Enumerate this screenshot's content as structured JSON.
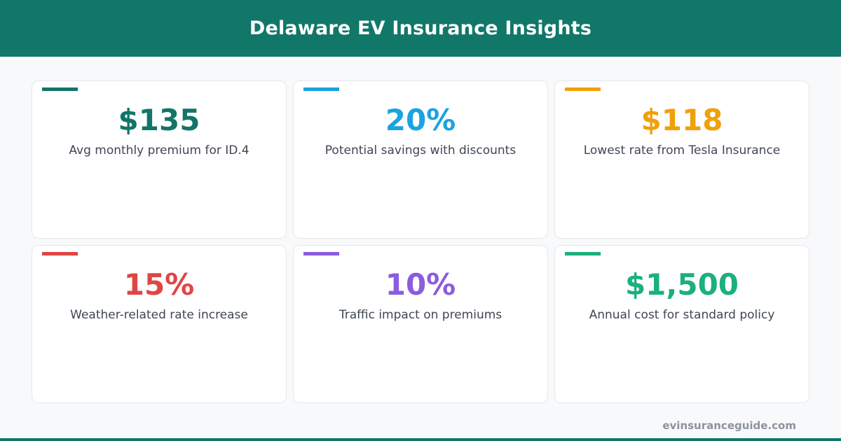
{
  "header": {
    "title": "Delaware EV Insurance Insights"
  },
  "cards": [
    {
      "value": "$135",
      "label": "Avg monthly premium for ID.4",
      "color": "#127568"
    },
    {
      "value": "20%",
      "label": "Potential savings with discounts",
      "color": "#1aa3e0"
    },
    {
      "value": "$118",
      "label": "Lowest rate from Tesla Insurance",
      "color": "#f0a00a"
    },
    {
      "value": "15%",
      "label": "Weather-related rate increase",
      "color": "#e04545"
    },
    {
      "value": "10%",
      "label": "Traffic impact on premiums",
      "color": "#8b5be0"
    },
    {
      "value": "$1,500",
      "label": "Annual cost for standard policy",
      "color": "#1bb07c"
    }
  ],
  "footer": {
    "url": "evinsuranceguide.com"
  },
  "colors": {
    "brand": "#117769"
  }
}
